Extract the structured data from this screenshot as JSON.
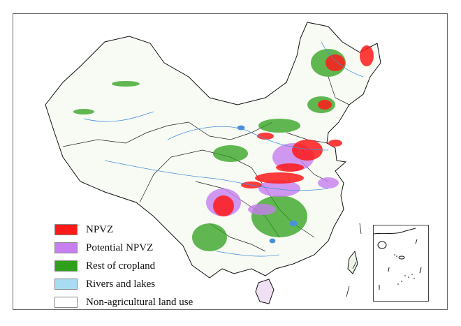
{
  "legend": [
    {
      "label": "NPVZ",
      "color": "#ff1a1a"
    },
    {
      "label": "Potential NPVZ",
      "color": "#c77ff0"
    },
    {
      "label": "Rest of cropland",
      "color": "#2ea01a"
    },
    {
      "label": "Rivers and lakes",
      "color": "#a8dcf2"
    },
    {
      "label": "Non-agricultural land use",
      "color": "#ffffff"
    }
  ],
  "colors": {
    "boundary": "#111111",
    "river": "#4a90d9"
  }
}
